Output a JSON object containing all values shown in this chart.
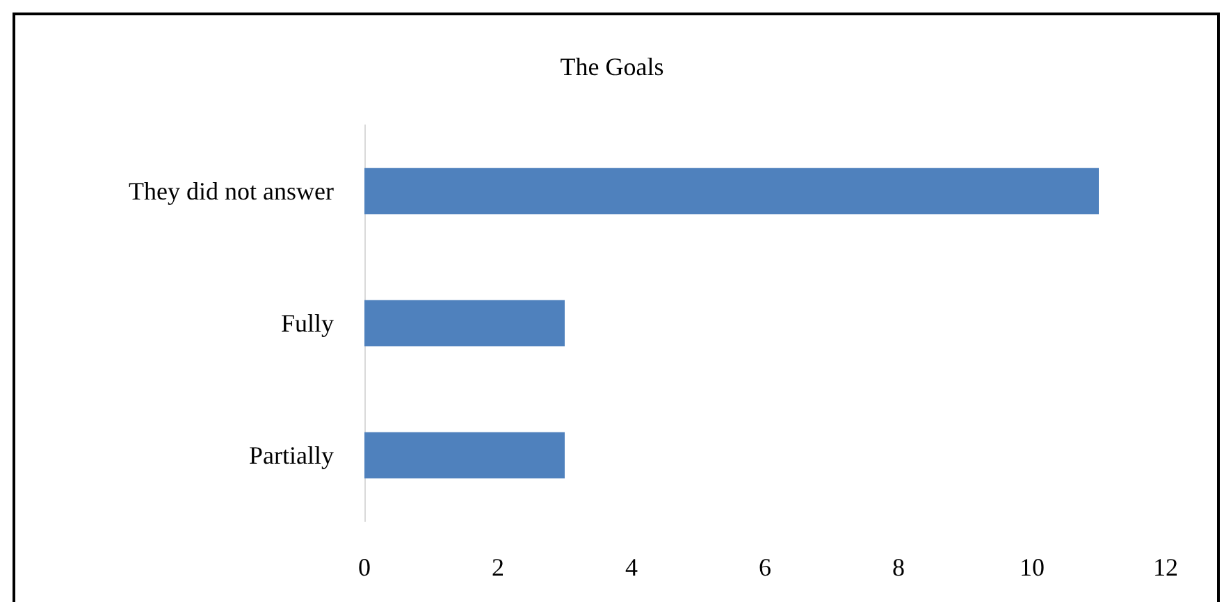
{
  "chart_data": {
    "type": "bar",
    "title": "The Goals",
    "orientation": "horizontal",
    "categories": [
      "They did not answer",
      "Fully",
      "Partially"
    ],
    "values": [
      11,
      3,
      3
    ],
    "color": "#4f81bd",
    "xlim": [
      0,
      12
    ],
    "xticks": [
      0,
      2,
      4,
      6,
      8,
      10,
      12
    ],
    "grid": false
  }
}
